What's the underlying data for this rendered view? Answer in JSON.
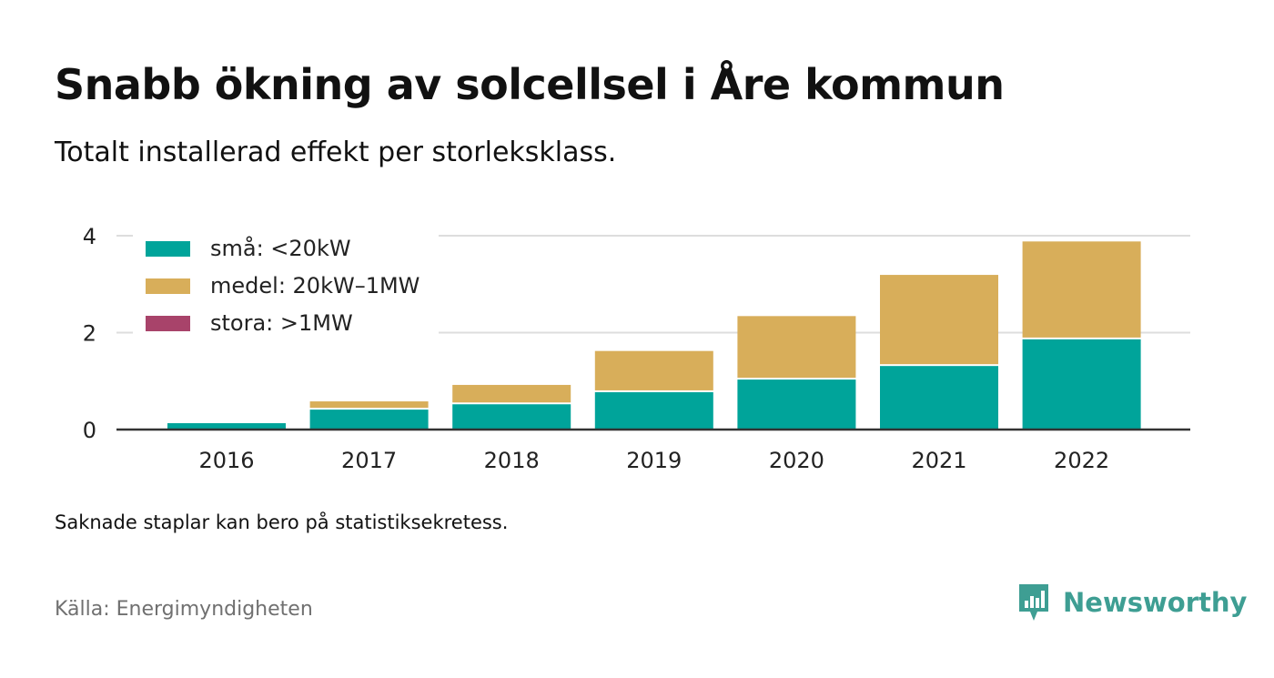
{
  "header": {
    "title": "Snabb ökning av solcellsel i Åre kommun",
    "subtitle": "Totalt installerad effekt per storleksklass."
  },
  "chart_data": {
    "type": "bar",
    "stacked": true,
    "categories": [
      "2016",
      "2017",
      "2018",
      "2019",
      "2020",
      "2021",
      "2022"
    ],
    "series": [
      {
        "name": "små: <20kW",
        "color": "#00a49a",
        "values": [
          0.15,
          0.43,
          0.54,
          0.79,
          1.05,
          1.33,
          1.88
        ]
      },
      {
        "name": "medel: 20kW–1MW",
        "color": "#d8ae5a",
        "values": [
          0,
          0.17,
          0.4,
          0.85,
          1.31,
          1.88,
          2.02
        ]
      },
      {
        "name": "stora: >1MW",
        "color": "#a8436a",
        "values": [
          0,
          0,
          0,
          0,
          0,
          0,
          0
        ]
      }
    ],
    "y_ticks": [
      0,
      2,
      4
    ],
    "ylim": [
      0,
      4.2
    ],
    "grid": true,
    "legend_position": "top-left"
  },
  "footer": {
    "note": "Saknade staplar kan bero på statistiksekretess.",
    "source": "Källa: Energimyndigheten",
    "brand": "Newsworthy"
  },
  "colors": {
    "axis": "#333333",
    "grid": "#dddddd",
    "brand": "#3e9e93"
  },
  "icons": {
    "brand_logo": "newsworthy-logo-icon"
  }
}
